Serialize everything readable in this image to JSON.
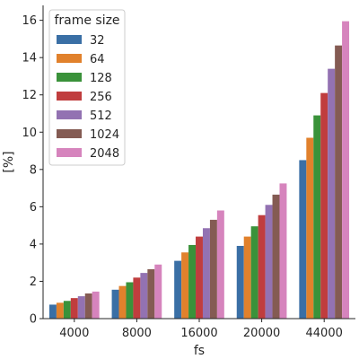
{
  "chart_data": {
    "type": "bar",
    "xlabel": "fs",
    "ylabel": "[%]",
    "categories": [
      "4000",
      "8000",
      "16000",
      "20000",
      "44000"
    ],
    "ylim": [
      0,
      16.8
    ],
    "yticks": [
      0,
      2,
      4,
      6,
      8,
      10,
      12,
      14,
      16
    ],
    "grid": false,
    "legend": {
      "title": "frame size",
      "placement": "top-left"
    },
    "series": [
      {
        "name": "32",
        "color": "#3a6fa5",
        "values": [
          0.75,
          1.55,
          3.1,
          3.9,
          8.5
        ]
      },
      {
        "name": "64",
        "color": "#e1812c",
        "values": [
          0.85,
          1.75,
          3.55,
          4.4,
          9.7
        ]
      },
      {
        "name": "128",
        "color": "#3a923a",
        "values": [
          0.95,
          1.95,
          3.95,
          4.95,
          10.9
        ]
      },
      {
        "name": "256",
        "color": "#c03d3e",
        "values": [
          1.1,
          2.2,
          4.4,
          5.55,
          12.1
        ]
      },
      {
        "name": "512",
        "color": "#9372b2",
        "values": [
          1.2,
          2.45,
          4.85,
          6.1,
          13.4
        ]
      },
      {
        "name": "1024",
        "color": "#845b53",
        "values": [
          1.35,
          2.65,
          5.3,
          6.65,
          14.65
        ]
      },
      {
        "name": "2048",
        "color": "#d684bd",
        "values": [
          1.45,
          2.9,
          5.8,
          7.25,
          15.95
        ]
      }
    ]
  }
}
